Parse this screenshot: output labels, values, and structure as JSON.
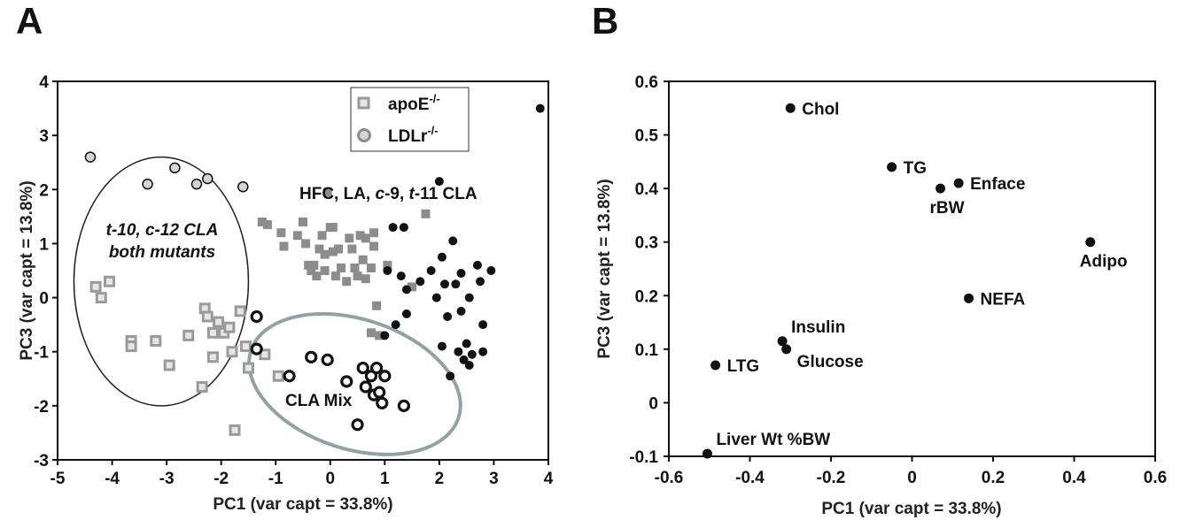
{
  "panels": {
    "a": {
      "letter": "A"
    },
    "b": {
      "letter": "B"
    }
  },
  "colors": {
    "apoE_outline": "#9a9a9a",
    "apoE_fill_open": "#e6e6e6",
    "apoE_fill_solid": "#8c8c8c",
    "ldlr_filled": "#111111",
    "ldlr_light_fill": "#d4d4d4",
    "cla_mix_ellipse": "#8fa3a3",
    "t10_ellipse": "#222222"
  },
  "chart_data": [
    {
      "type": "scatter",
      "panel": "A",
      "xlabel": "PC1 (var capt = 33.8%)",
      "ylabel": "PC3 (var capt = 13.8%)",
      "xlim": [
        -5,
        4
      ],
      "ylim": [
        -3,
        4
      ],
      "xticks": [
        "-5",
        "-4",
        "-3",
        "-2",
        "-1",
        "0",
        "1",
        "2",
        "3",
        "4"
      ],
      "yticks": [
        "-3",
        "-2",
        "-1",
        "0",
        "1",
        "2",
        "3",
        "4"
      ],
      "grid": false,
      "legend": {
        "placement": "top-right",
        "entries": [
          {
            "base": "apoE",
            "sup": "-/-",
            "marker": "square"
          },
          {
            "base": "LDLr",
            "sup": "-/-",
            "marker": "circle"
          }
        ]
      },
      "annotations": {
        "group1_line1": "t-10, c-12 CLA",
        "group1_line2": "both mutants",
        "group2_parts": [
          {
            "t": "HFC, LA, ",
            "i": false
          },
          {
            "t": "c",
            "i": true
          },
          {
            "t": "-9, ",
            "i": false
          },
          {
            "t": "t",
            "i": true
          },
          {
            "t": "-11 CLA",
            "i": false
          }
        ],
        "group3": "CLA Mix"
      },
      "ellipses": [
        {
          "name": "t10c12",
          "cx": -3.1,
          "cy": 0.3,
          "rx": 1.6,
          "ry": 2.3,
          "rotation_deg": 0
        },
        {
          "name": "claMix",
          "cx": 0.45,
          "cy": -1.6,
          "rx": 2.0,
          "ry": 1.2,
          "rotation_deg": 18
        }
      ],
      "series": [
        {
          "name": "t-10, c-12 CLA apoE",
          "marker": "square",
          "style": "open",
          "points": [
            [
              -4.3,
              0.2
            ],
            [
              -4.2,
              0.0
            ],
            [
              -4.05,
              0.3
            ],
            [
              -3.65,
              -0.8
            ],
            [
              -3.65,
              -0.9
            ],
            [
              -3.2,
              -0.8
            ],
            [
              -2.95,
              -1.25
            ],
            [
              -2.6,
              -0.7
            ],
            [
              -2.35,
              -1.65
            ],
            [
              -2.3,
              -0.2
            ],
            [
              -2.25,
              -0.35
            ],
            [
              -2.15,
              -0.65
            ],
            [
              -2.15,
              -1.1
            ],
            [
              -2.05,
              -0.45
            ],
            [
              -1.95,
              -0.65
            ],
            [
              -1.85,
              -0.55
            ],
            [
              -1.8,
              -1.0
            ],
            [
              -1.75,
              -2.45
            ],
            [
              -1.65,
              -0.25
            ],
            [
              -1.55,
              -0.9
            ],
            [
              -1.5,
              -1.3
            ],
            [
              -1.2,
              -1.05
            ],
            [
              -0.95,
              -1.45
            ]
          ]
        },
        {
          "name": "t-10, c-12 CLA LDLr",
          "marker": "circle",
          "style": "light",
          "points": [
            [
              -4.4,
              2.6
            ],
            [
              -3.35,
              2.1
            ],
            [
              -2.85,
              2.4
            ],
            [
              -2.45,
              2.1
            ],
            [
              -2.25,
              2.2
            ],
            [
              -1.6,
              2.05
            ]
          ]
        },
        {
          "name": "HFC, LA, c-9, t-11 CLA apoE",
          "marker": "square",
          "style": "solid",
          "points": [
            [
              -1.25,
              1.4
            ],
            [
              -1.15,
              1.35
            ],
            [
              -0.9,
              1.2
            ],
            [
              -0.85,
              0.95
            ],
            [
              -0.6,
              1.15
            ],
            [
              -0.5,
              1.4
            ],
            [
              -0.45,
              1.0
            ],
            [
              -0.4,
              0.6
            ],
            [
              -0.35,
              0.5
            ],
            [
              -0.3,
              0.6
            ],
            [
              -0.25,
              0.4
            ],
            [
              -0.2,
              0.9
            ],
            [
              -0.15,
              1.15
            ],
            [
              -0.1,
              0.5
            ],
            [
              -0.1,
              0.8
            ],
            [
              0.0,
              1.3
            ],
            [
              0.05,
              1.3
            ],
            [
              0.05,
              0.85
            ],
            [
              0.1,
              0.4
            ],
            [
              0.15,
              0.9
            ],
            [
              0.2,
              0.55
            ],
            [
              0.3,
              0.3
            ],
            [
              0.35,
              1.1
            ],
            [
              0.4,
              0.9
            ],
            [
              0.45,
              0.55
            ],
            [
              0.5,
              0.4
            ],
            [
              0.55,
              1.15
            ],
            [
              0.6,
              0.7
            ],
            [
              0.65,
              0.35
            ],
            [
              0.65,
              1.1
            ],
            [
              0.75,
              0.55
            ],
            [
              0.8,
              0.95
            ],
            [
              0.8,
              1.2
            ],
            [
              0.85,
              -0.15
            ],
            [
              0.9,
              -0.7
            ],
            [
              1.05,
              0.6
            ],
            [
              1.5,
              0.2
            ],
            [
              1.75,
              1.55
            ],
            [
              -0.05,
              1.95
            ],
            [
              0.75,
              -0.65
            ]
          ]
        },
        {
          "name": "HFC, LA, c-9, t-11 CLA LDLr",
          "marker": "circle",
          "style": "filled",
          "points": [
            [
              1.15,
              1.3
            ],
            [
              1.35,
              1.3
            ],
            [
              1.05,
              0.5
            ],
            [
              1.3,
              0.4
            ],
            [
              1.4,
              0.15
            ],
            [
              1.4,
              -0.3
            ],
            [
              1.2,
              -0.5
            ],
            [
              1.0,
              -0.7
            ],
            [
              1.65,
              0.3
            ],
            [
              1.85,
              0.5
            ],
            [
              1.95,
              0.0
            ],
            [
              2.0,
              2.15
            ],
            [
              2.05,
              0.75
            ],
            [
              2.1,
              0.25
            ],
            [
              2.15,
              -0.35
            ],
            [
              2.2,
              -1.45
            ],
            [
              2.25,
              1.05
            ],
            [
              2.3,
              0.25
            ],
            [
              2.35,
              -1.0
            ],
            [
              2.4,
              -0.25
            ],
            [
              2.4,
              0.45
            ],
            [
              2.45,
              -1.15
            ],
            [
              2.5,
              -0.85
            ],
            [
              2.55,
              -1.25
            ],
            [
              2.55,
              0.0
            ],
            [
              2.6,
              -1.05
            ],
            [
              2.7,
              0.6
            ],
            [
              2.75,
              0.3
            ],
            [
              2.8,
              -1.0
            ],
            [
              2.8,
              -0.5
            ],
            [
              2.95,
              0.5
            ],
            [
              2.05,
              -0.9
            ],
            [
              3.85,
              3.5
            ]
          ]
        },
        {
          "name": "CLA Mix LDLr",
          "marker": "circle",
          "style": "open-thick",
          "points": [
            [
              -1.35,
              -0.35
            ],
            [
              -1.35,
              -0.95
            ],
            [
              -0.75,
              -1.45
            ],
            [
              -0.35,
              -1.1
            ],
            [
              -0.05,
              -1.15
            ],
            [
              0.3,
              -1.55
            ],
            [
              0.5,
              -2.35
            ],
            [
              0.6,
              -1.3
            ],
            [
              0.65,
              -1.65
            ],
            [
              0.75,
              -1.45
            ],
            [
              0.8,
              -1.8
            ],
            [
              0.85,
              -1.3
            ],
            [
              0.9,
              -1.75
            ],
            [
              0.95,
              -1.95
            ],
            [
              1.0,
              -1.45
            ],
            [
              1.35,
              -2.0
            ]
          ]
        }
      ]
    },
    {
      "type": "scatter",
      "panel": "B",
      "xlabel": "PC1 (var capt = 33.8%)",
      "ylabel": "PC3 (var capt = 13.8%)",
      "xlim": [
        -0.6,
        0.6
      ],
      "ylim": [
        -0.1,
        0.6
      ],
      "xticks": [
        "-0.6",
        "-0.4",
        "-0.2",
        "0",
        "0.2",
        "0.4",
        "0.6"
      ],
      "yticks": [
        "-0.1",
        "0",
        "0.1",
        "0.2",
        "0.3",
        "0.4",
        "0.5",
        "0.6"
      ],
      "grid": false,
      "points": [
        {
          "label": "Chol",
          "x": -0.3,
          "y": 0.55,
          "anchor": "right"
        },
        {
          "label": "TG",
          "x": -0.05,
          "y": 0.44,
          "anchor": "right"
        },
        {
          "label": "Enface",
          "x": 0.115,
          "y": 0.41,
          "anchor": "right"
        },
        {
          "label": "rBW",
          "x": 0.07,
          "y": 0.4,
          "anchor": "below"
        },
        {
          "label": "Adipo",
          "x": 0.44,
          "y": 0.3,
          "anchor": "below"
        },
        {
          "label": "NEFA",
          "x": 0.14,
          "y": 0.195,
          "anchor": "right"
        },
        {
          "label": "Insulin",
          "x": -0.32,
          "y": 0.115,
          "anchor": "above-right"
        },
        {
          "label": "Glucose",
          "x": -0.31,
          "y": 0.1,
          "anchor": "below-right"
        },
        {
          "label": "LTG",
          "x": -0.485,
          "y": 0.07,
          "anchor": "right"
        },
        {
          "label": "Liver Wt %BW",
          "x": -0.505,
          "y": -0.095,
          "anchor": "above-right"
        }
      ]
    }
  ]
}
